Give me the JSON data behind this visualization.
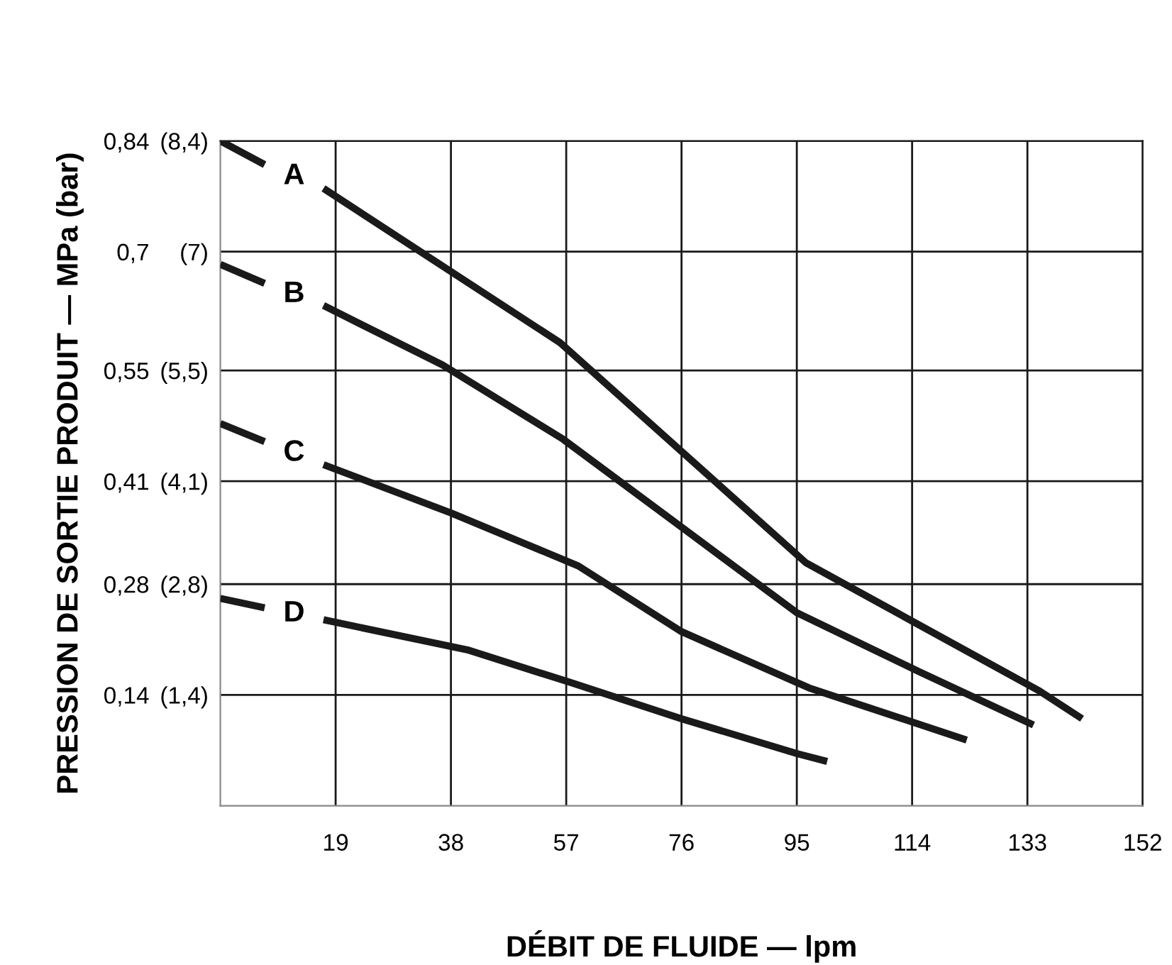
{
  "chart_data": {
    "type": "line",
    "xlabel": "DÉBIT DE FLUIDE — lpm",
    "ylabel": "PRESSION DE SORTIE PRODUIT — MPa (bar)",
    "series": [
      {
        "name": "A",
        "color": "#1a1a1a",
        "x": [
          0,
          7.3,
          12,
          17,
          56,
          96.5,
          135,
          142
        ],
        "values": [
          0.84,
          0.81,
          null,
          0.78,
          0.585,
          0.307,
          0.145,
          0.11
        ]
      },
      {
        "name": "B",
        "color": "#1a1a1a",
        "x": [
          0,
          7.3,
          12,
          17,
          36.6,
          56.5,
          95,
          115,
          134
        ],
        "values": [
          0.684,
          0.66,
          null,
          0.632,
          0.557,
          0.463,
          0.244,
          0.17,
          0.102
        ]
      },
      {
        "name": "C",
        "color": "#1a1a1a",
        "x": [
          0,
          7.3,
          12,
          17,
          38,
          59,
          76,
          97,
          123
        ],
        "values": [
          0.483,
          0.46,
          null,
          0.431,
          0.37,
          0.303,
          0.22,
          0.149,
          0.083
        ]
      },
      {
        "name": "D",
        "color": "#1a1a1a",
        "x": [
          0,
          7.3,
          12,
          17,
          40.7,
          57.6,
          76,
          95,
          100
        ],
        "values": [
          0.262,
          0.25,
          null,
          0.235,
          0.197,
          0.156,
          0.11,
          0.066,
          0.056
        ]
      }
    ],
    "xlim": [
      0,
      152
    ],
    "xticks": [
      19,
      38,
      57,
      76,
      95,
      114,
      133,
      152
    ],
    "ylim": [
      0,
      0.84
    ],
    "yticks": [
      {
        "value": 0.14,
        "label": "0,14"
      },
      {
        "value": 0.28,
        "label": "0,28"
      },
      {
        "value": 0.41,
        "label": "0,41"
      },
      {
        "value": 0.55,
        "label": "0,55"
      },
      {
        "value": 0.7,
        "label": "0,7"
      },
      {
        "value": 0.84,
        "label": "0,84"
      }
    ],
    "y2lim": [
      0,
      8.4
    ],
    "y2ticks": [
      {
        "value": 1.4,
        "label": "(1,4)"
      },
      {
        "value": 2.8,
        "label": "(2,8)"
      },
      {
        "value": 4.1,
        "label": "(4,1)"
      },
      {
        "value": 5.5,
        "label": "(5,5)"
      },
      {
        "value": 7,
        "label": "(7)"
      },
      {
        "value": 8.4,
        "label": "(8,4)"
      }
    ],
    "grid": true,
    "legend": false,
    "marker": "none",
    "line_style": "solid"
  }
}
